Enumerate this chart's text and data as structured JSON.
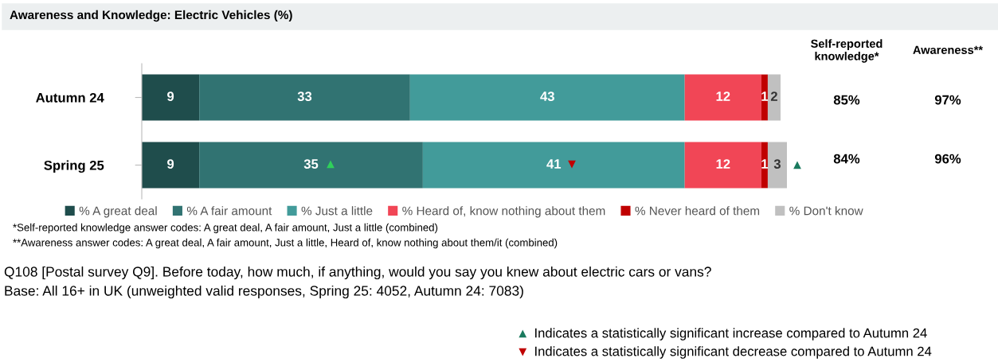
{
  "chart_data": {
    "type": "bar",
    "orientation": "horizontal",
    "stacked": true,
    "title": "Awareness and Knowledge: Electric Vehicles (%)",
    "categories": [
      "Autumn 24",
      "Spring 25"
    ],
    "series": [
      {
        "name": "% A great deal",
        "color": "#1f4d4c",
        "values": [
          9,
          9
        ]
      },
      {
        "name": "% A fair amount",
        "color": "#317372",
        "values": [
          33,
          35
        ]
      },
      {
        "name": "% Just a little",
        "color": "#429b9a",
        "values": [
          43,
          41
        ]
      },
      {
        "name": "% Heard of, know nothing about them",
        "color": "#f14656",
        "values": [
          12,
          12
        ]
      },
      {
        "name": "% Never heard of them",
        "color": "#c00000",
        "values": [
          1,
          1
        ]
      },
      {
        "name": "% Don't know",
        "color": "#c0c0c0",
        "values": [
          2,
          3
        ]
      }
    ],
    "xlim": [
      0,
      101
    ],
    "tick_labels": "y",
    "data_labels": true,
    "legend": "bottom",
    "grid": false,
    "annotations": [
      "Self-reported knowledge*",
      "Awareness**",
      "85%",
      "97%",
      "84%",
      "96%",
      "*Self-reported knowledge answer codes: A great deal, A fair amount, Just a little (combined)",
      "**Awareness answer codes: A great deal, A fair amount, Just a little, Heard of, know nothing about them/it (combined)",
      "Q108 [Postal survey Q9]. Before today, how much, if anything, would you say you knew about electric cars or vans?",
      "Base: All 16+ in UK (unweighted valid responses, Spring 25: 4052, Autumn 24: 7083)",
      "▲ Indicates a statistically significant increase compared to Autumn 24",
      "▼ Indicates a statistically significant decrease compared to Autumn 24",
      "▲",
      "▲",
      "▼"
    ]
  }
}
